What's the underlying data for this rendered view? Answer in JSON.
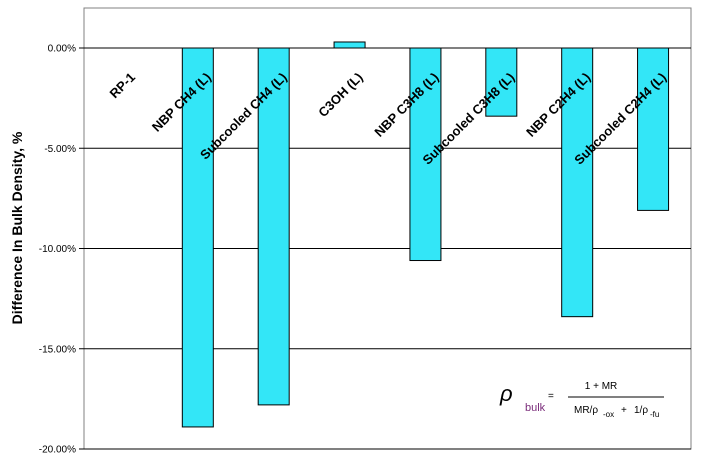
{
  "chart_data": {
    "type": "bar",
    "ylabel": "Difference In Bulk Density, %",
    "ylim": [
      -20,
      0
    ],
    "yticks": [
      "0.00%",
      "-5.00%",
      "-10.00%",
      "-15.00%",
      "-20.00%"
    ],
    "categories": [
      "RP-1",
      "NBP CH4 (L)",
      "Subcooled CH4 (L)",
      "C3OH (L)",
      "NBP C3H8 (L)",
      "Subcooled C3H8 (L)",
      "NBP C2H4 (L)",
      "Subcooled C2H4 (L)"
    ],
    "values": [
      0.0,
      -18.9,
      -17.8,
      0.3,
      -10.6,
      -3.4,
      -13.4,
      -8.1
    ],
    "bar_color": "#33E6F7",
    "grid": true
  },
  "formula": {
    "rho": "ρ",
    "rho_sub": "bulk",
    "equals": "=",
    "numerator": "1 + MR",
    "den_left": "MR/ρ",
    "den_left_sub": "-ox",
    "den_plus": "+",
    "den_right": "1/ρ",
    "den_right_sub": "-fu"
  }
}
